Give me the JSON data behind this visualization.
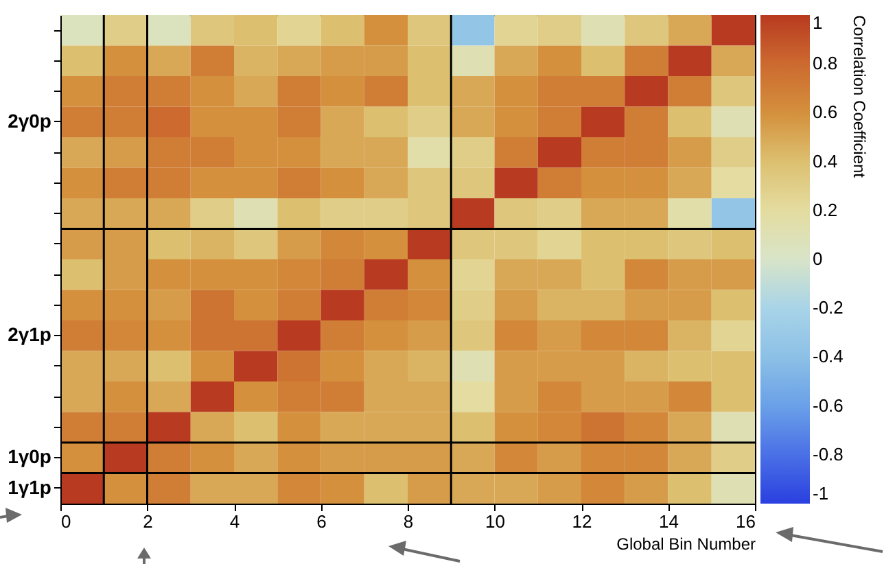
{
  "chart_data": {
    "type": "heatmap",
    "xlabel": "Global Bin Number",
    "clabel": "Correlation Coefficient",
    "xlim": [
      0,
      16
    ],
    "xticks": [
      0,
      2,
      4,
      6,
      8,
      10,
      12,
      14,
      16
    ],
    "y_categories": [
      null,
      null,
      null,
      "2γ0p",
      null,
      null,
      null,
      null,
      null,
      null,
      "2γ1p",
      null,
      null,
      null,
      "1γ0p",
      "1γ1p"
    ],
    "clim": [
      -1,
      1
    ],
    "cticks": [
      -1,
      -0.8,
      -0.6,
      -0.4,
      -0.2,
      0,
      0.2,
      0.4,
      0.6,
      0.8,
      1
    ],
    "cells": [
      [
        0.05,
        0.3,
        0.05,
        0.35,
        0.4,
        0.25,
        0.4,
        0.6,
        0.35,
        -0.35,
        0.25,
        0.3,
        0.1,
        0.35,
        0.5,
        1
      ],
      [
        0.4,
        0.6,
        0.5,
        0.7,
        0.45,
        0.5,
        0.55,
        0.55,
        0.4,
        0.1,
        0.5,
        0.6,
        0.4,
        0.7,
        1,
        0.5
      ],
      [
        0.6,
        0.7,
        0.7,
        0.6,
        0.5,
        0.7,
        0.6,
        0.7,
        0.4,
        0.5,
        0.6,
        0.7,
        0.7,
        1,
        0.7,
        0.35
      ],
      [
        0.7,
        0.7,
        0.8,
        0.6,
        0.6,
        0.7,
        0.5,
        0.4,
        0.3,
        0.5,
        0.6,
        0.7,
        1,
        0.7,
        0.4,
        0.1
      ],
      [
        0.5,
        0.55,
        0.7,
        0.7,
        0.6,
        0.6,
        0.5,
        0.5,
        0.15,
        0.3,
        0.7,
        1,
        0.7,
        0.7,
        0.55,
        0.3
      ],
      [
        0.6,
        0.7,
        0.7,
        0.6,
        0.6,
        0.7,
        0.6,
        0.5,
        0.35,
        0.35,
        1,
        0.7,
        0.6,
        0.6,
        0.5,
        0.2
      ],
      [
        0.5,
        0.5,
        0.5,
        0.3,
        0.1,
        0.4,
        0.3,
        0.3,
        0.35,
        1,
        0.35,
        0.3,
        0.5,
        0.5,
        0.15,
        -0.35
      ],
      [
        0.55,
        0.55,
        0.4,
        0.45,
        0.35,
        0.55,
        0.65,
        0.6,
        1,
        0.35,
        0.35,
        0.25,
        0.4,
        0.4,
        0.35,
        0.4
      ],
      [
        0.4,
        0.55,
        0.6,
        0.6,
        0.6,
        0.65,
        0.7,
        1,
        0.6,
        0.25,
        0.5,
        0.5,
        0.4,
        0.65,
        0.55,
        0.55
      ],
      [
        0.6,
        0.6,
        0.55,
        0.75,
        0.6,
        0.7,
        1,
        0.7,
        0.65,
        0.3,
        0.55,
        0.45,
        0.45,
        0.55,
        0.55,
        0.4
      ],
      [
        0.7,
        0.65,
        0.6,
        0.75,
        0.75,
        1,
        0.7,
        0.6,
        0.55,
        0.35,
        0.65,
        0.55,
        0.65,
        0.65,
        0.45,
        0.25
      ],
      [
        0.5,
        0.5,
        0.4,
        0.6,
        1,
        0.75,
        0.6,
        0.5,
        0.45,
        0.1,
        0.55,
        0.55,
        0.55,
        0.45,
        0.4,
        0.4
      ],
      [
        0.5,
        0.6,
        0.5,
        1,
        0.6,
        0.7,
        0.7,
        0.5,
        0.5,
        0.2,
        0.55,
        0.65,
        0.55,
        0.55,
        0.65,
        0.4
      ],
      [
        0.7,
        0.7,
        1,
        0.5,
        0.4,
        0.6,
        0.5,
        0.5,
        0.5,
        0.4,
        0.6,
        0.65,
        0.75,
        0.65,
        0.5,
        0.1
      ],
      [
        0.6,
        1,
        0.7,
        0.6,
        0.5,
        0.6,
        0.55,
        0.55,
        0.55,
        0.5,
        0.65,
        0.55,
        0.65,
        0.65,
        0.5,
        0.3
      ],
      [
        1,
        0.6,
        0.7,
        0.5,
        0.5,
        0.65,
        0.6,
        0.4,
        0.55,
        0.5,
        0.5,
        0.55,
        0.65,
        0.55,
        0.4,
        0.1
      ]
    ],
    "ref_lines": [
      {
        "axis": "x",
        "value": 1,
        "color": "#000000"
      },
      {
        "axis": "x",
        "value": 2,
        "color": "#000000"
      },
      {
        "axis": "x",
        "value": 9,
        "color": "#000000"
      }
    ]
  }
}
